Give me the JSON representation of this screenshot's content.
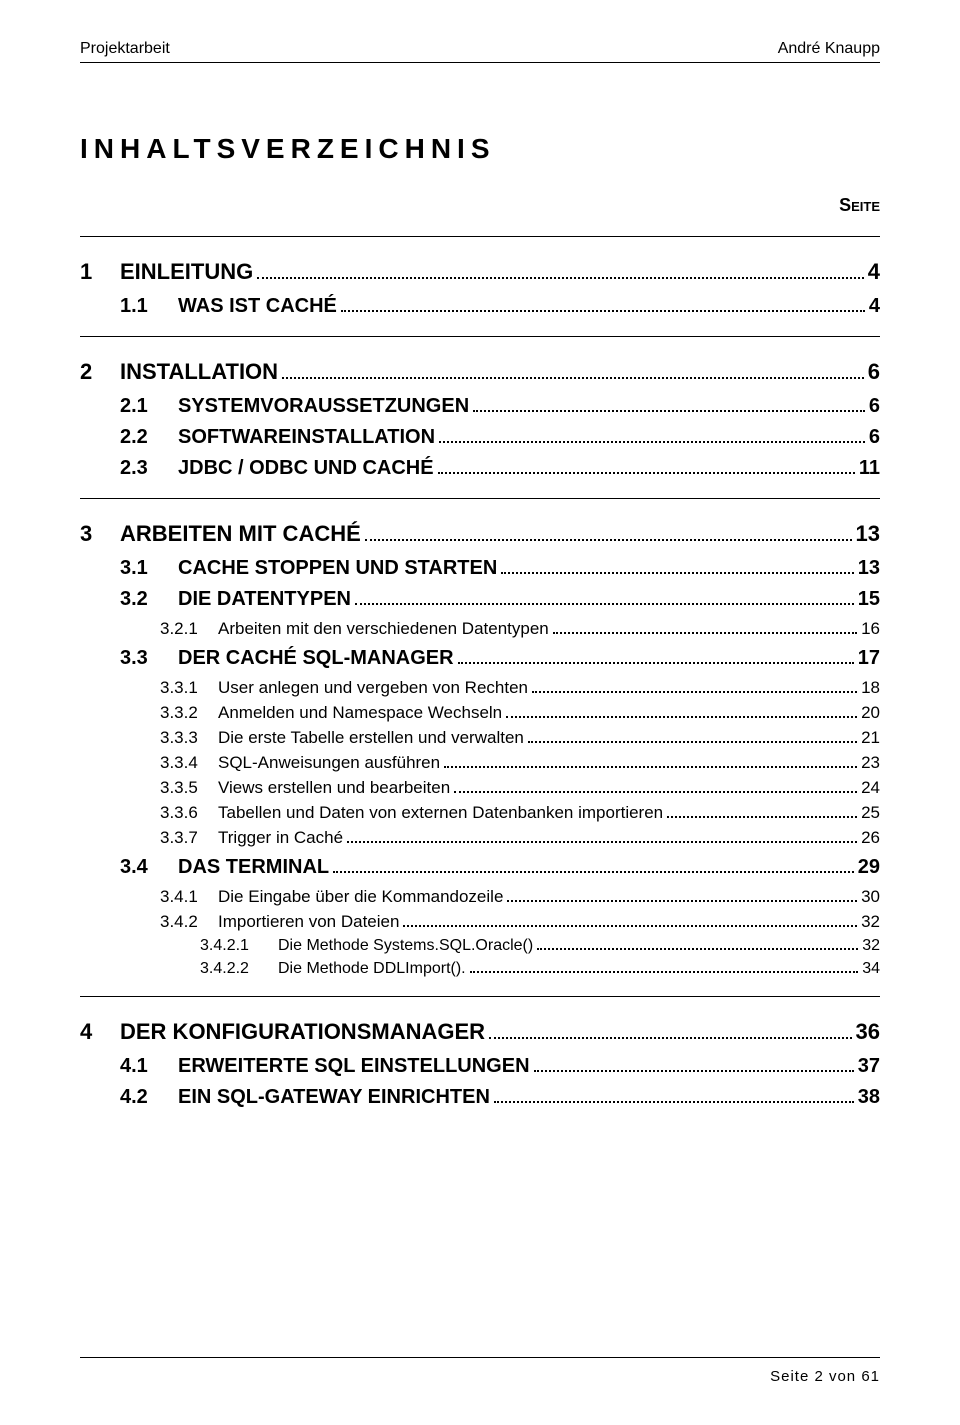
{
  "header": {
    "left": "Projektarbeit",
    "right": "André Knaupp"
  },
  "title": "INHALTSVERZEICHNIS",
  "seite_label": "Seite",
  "toc": [
    {
      "type": "divider"
    },
    {
      "level": 1,
      "num": "1",
      "label": "EINLEITUNG",
      "page": "4"
    },
    {
      "level": 2,
      "num": "1.1",
      "label": "WAS IST CACHÉ",
      "page": "4"
    },
    {
      "type": "divider"
    },
    {
      "level": 1,
      "num": "2",
      "label": "INSTALLATION",
      "page": "6"
    },
    {
      "level": 2,
      "num": "2.1",
      "label": "SYSTEMVORAUSSETZUNGEN",
      "page": "6"
    },
    {
      "level": 2,
      "num": "2.2",
      "label": "SOFTWAREINSTALLATION",
      "page": "6"
    },
    {
      "level": 2,
      "num": "2.3",
      "label": "JDBC / ODBC UND CACHÉ",
      "page": "11"
    },
    {
      "type": "divider"
    },
    {
      "level": 1,
      "num": "3",
      "label": "ARBEITEN MIT CACHÉ",
      "page": "13"
    },
    {
      "level": 2,
      "num": "3.1",
      "label": "CACHE STOPPEN UND STARTEN",
      "page": "13"
    },
    {
      "level": 2,
      "num": "3.2",
      "label": "DIE DATENTYPEN",
      "page": "15"
    },
    {
      "level": 3,
      "num": "3.2.1",
      "label": "Arbeiten mit den verschiedenen Datentypen",
      "page": "16"
    },
    {
      "level": 2,
      "num": "3.3",
      "label": "DER CACHÉ SQL-MANAGER",
      "page": "17"
    },
    {
      "level": 3,
      "num": "3.3.1",
      "label": "User anlegen und vergeben von Rechten",
      "page": "18"
    },
    {
      "level": 3,
      "num": "3.3.2",
      "label": "Anmelden und Namespace Wechseln",
      "page": "20"
    },
    {
      "level": 3,
      "num": "3.3.3",
      "label": "Die erste Tabelle erstellen und verwalten",
      "page": "21"
    },
    {
      "level": 3,
      "num": "3.3.4",
      "label": "SQL-Anweisungen ausführen",
      "page": "23"
    },
    {
      "level": 3,
      "num": "3.3.5",
      "label": "Views erstellen und bearbeiten",
      "page": "24"
    },
    {
      "level": 3,
      "num": "3.3.6",
      "label": "Tabellen und Daten von externen Datenbanken importieren",
      "page": "25"
    },
    {
      "level": 3,
      "num": "3.3.7",
      "label": "Trigger in Caché",
      "page": "26"
    },
    {
      "level": 2,
      "num": "3.4",
      "label": "DAS TERMINAL",
      "page": "29"
    },
    {
      "level": 3,
      "num": "3.4.1",
      "label": "Die Eingabe über die Kommandozeile",
      "page": "30"
    },
    {
      "level": 3,
      "num": "3.4.2",
      "label": "Importieren von Dateien",
      "page": "32"
    },
    {
      "level": 4,
      "num": "3.4.2.1",
      "label": "Die Methode Systems.SQL.Oracle()",
      "page": "32"
    },
    {
      "level": 4,
      "num": "3.4.2.2",
      "label": "Die Methode DDLImport().",
      "page": "34"
    },
    {
      "type": "divider"
    },
    {
      "level": 1,
      "num": "4",
      "label": "DER KONFIGURATIONSMANAGER",
      "page": "36"
    },
    {
      "level": 2,
      "num": "4.1",
      "label": "ERWEITERTE SQL EINSTELLUNGEN",
      "page": "37"
    },
    {
      "level": 2,
      "num": "4.2",
      "label": "EIN SQL-GATEWAY EINRICHTEN",
      "page": "38"
    }
  ],
  "footer": "Seite 2 von 61"
}
